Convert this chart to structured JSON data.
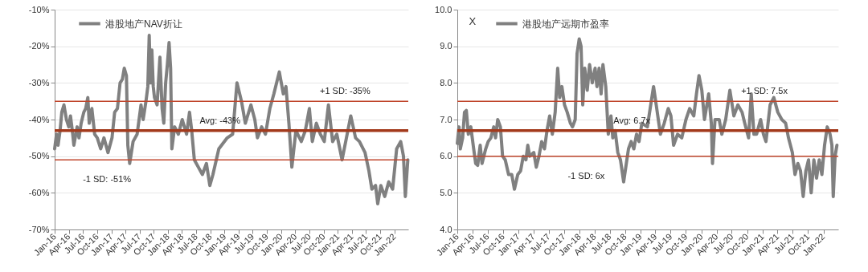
{
  "chart_data": [
    {
      "type": "line",
      "legend": "top left",
      "grid": "y",
      "xlim": [
        "2016-01-01",
        "2022-03-31"
      ],
      "xticks": [
        {
          "value": "2016-01-01",
          "label": "Jan-16"
        },
        {
          "value": "2016-04-01",
          "label": "Apr-16"
        },
        {
          "value": "2016-07-01",
          "label": "Jul-16"
        },
        {
          "value": "2016-10-01",
          "label": "Oct-16"
        },
        {
          "value": "2017-01-01",
          "label": "Jan-17"
        },
        {
          "value": "2017-04-01",
          "label": "Apr-17"
        },
        {
          "value": "2017-07-01",
          "label": "Jul-17"
        },
        {
          "value": "2017-10-01",
          "label": "Oct-17"
        },
        {
          "value": "2018-01-01",
          "label": "Jan-18"
        },
        {
          "value": "2018-04-01",
          "label": "Apr-18"
        },
        {
          "value": "2018-07-01",
          "label": "Jul-18"
        },
        {
          "value": "2018-10-01",
          "label": "Oct-18"
        },
        {
          "value": "2019-01-01",
          "label": "Jan-19"
        },
        {
          "value": "2019-04-01",
          "label": "Apr-19"
        },
        {
          "value": "2019-07-01",
          "label": "Jul-19"
        },
        {
          "value": "2019-10-01",
          "label": "Oct-19"
        },
        {
          "value": "2020-01-01",
          "label": "Jan-20"
        },
        {
          "value": "2020-04-01",
          "label": "Apr-20"
        },
        {
          "value": "2020-07-01",
          "label": "Jul-20"
        },
        {
          "value": "2020-10-01",
          "label": "Oct-20"
        },
        {
          "value": "2021-01-01",
          "label": "Jan-21"
        },
        {
          "value": "2021-04-01",
          "label": "Apr-21"
        },
        {
          "value": "2021-07-01",
          "label": "Jul-21"
        },
        {
          "value": "2021-10-01",
          "label": "Oct-21"
        },
        {
          "value": "2022-01-01",
          "label": "Jan-22"
        }
      ],
      "ylim": [
        -70,
        -10
      ],
      "yticks": [
        {
          "value": -70,
          "label": "-70%"
        },
        {
          "value": -60,
          "label": "-60%"
        },
        {
          "value": -50,
          "label": "-50%"
        },
        {
          "value": -40,
          "label": "-40%"
        },
        {
          "value": -30,
          "label": "-30%"
        },
        {
          "value": -20,
          "label": "-20%"
        },
        {
          "value": -10,
          "label": "-10%"
        }
      ],
      "ref_lines": [
        {
          "axis": "y",
          "value": -35,
          "label": "+1 SD: -35%",
          "color": "#c0462c"
        },
        {
          "axis": "y",
          "value": -43,
          "label": "Avg: -43%",
          "color": "#a33a1c"
        },
        {
          "axis": "y",
          "value": -51,
          "label": "-1 SD: -51%",
          "color": "#c0462c"
        }
      ],
      "series": [
        {
          "name": "港股地产NAV折让",
          "color": "#808080",
          "x": [
            "2016-01-01",
            "2016-01-13",
            "2016-01-23",
            "2016-02-05",
            "2016-02-16",
            "2016-03-01",
            "2016-03-17",
            "2016-04-01",
            "2016-04-12",
            "2016-04-24",
            "2016-05-04",
            "2016-05-25",
            "2016-06-06",
            "2016-06-20",
            "2016-07-07",
            "2016-07-19",
            "2016-08-02",
            "2016-08-11",
            "2016-08-28",
            "2016-09-15",
            "2016-10-02",
            "2016-10-24",
            "2016-11-14",
            "2016-12-10",
            "2017-01-05",
            "2017-01-22",
            "2017-02-09",
            "2017-02-26",
            "2017-03-13",
            "2017-03-25",
            "2017-04-08",
            "2017-04-17",
            "2017-04-29",
            "2017-05-21",
            "2017-06-16",
            "2017-07-11",
            "2017-07-25",
            "2017-08-12",
            "2017-08-24",
            "2017-09-02",
            "2017-09-10",
            "2017-09-19",
            "2017-09-28",
            "2017-10-06",
            "2017-10-23",
            "2017-11-10",
            "2017-11-24",
            "2017-12-05",
            "2017-12-17",
            "2017-12-28",
            "2018-01-08",
            "2018-01-18",
            "2018-01-26",
            "2018-02-13",
            "2018-03-09",
            "2018-04-03",
            "2018-05-01",
            "2018-05-20",
            "2018-06-03",
            "2018-06-20",
            "2018-07-16",
            "2018-08-11",
            "2018-09-06",
            "2018-09-28",
            "2018-10-18",
            "2018-11-25",
            "2019-01-18",
            "2019-02-22",
            "2019-03-22",
            "2019-04-20",
            "2019-05-15",
            "2019-06-20",
            "2019-07-15",
            "2019-08-01",
            "2019-08-28",
            "2019-09-22",
            "2019-10-20",
            "2019-11-15",
            "2019-12-20",
            "2020-01-15",
            "2020-02-01",
            "2020-02-20",
            "2020-03-10",
            "2020-04-05",
            "2020-05-10",
            "2020-06-05",
            "2020-07-01",
            "2020-07-20",
            "2020-08-15",
            "2020-09-10",
            "2020-10-05",
            "2020-11-01",
            "2020-11-28",
            "2020-12-25",
            "2021-01-28",
            "2021-02-25",
            "2021-03-25",
            "2021-04-25",
            "2021-05-20",
            "2021-06-25",
            "2021-07-20",
            "2021-08-08",
            "2021-09-01",
            "2021-09-15",
            "2021-10-05",
            "2021-10-30",
            "2021-11-25",
            "2021-12-20",
            "2022-01-15",
            "2022-02-10",
            "2022-02-28",
            "2022-03-12",
            "2022-03-28"
          ],
          "values": [
            -48,
            -44,
            -47,
            -43,
            -38,
            -36,
            -40,
            -42,
            -39,
            -43,
            -47,
            -42,
            -45,
            -41,
            -38,
            -37,
            -34,
            -41,
            -37,
            -44,
            -45,
            -48,
            -45,
            -49,
            -45,
            -38,
            -37,
            -30,
            -29,
            -26,
            -28,
            -47,
            -52,
            -46,
            -44,
            -36,
            -40,
            -35,
            -31,
            -17,
            -30,
            -21,
            -31,
            -34,
            -36,
            -23,
            -37,
            -41,
            -30,
            -25,
            -19,
            -26,
            -48,
            -42,
            -44,
            -40,
            -44,
            -38,
            -43,
            -51,
            -53,
            -55,
            -52,
            -58,
            -55,
            -48,
            -45,
            -44,
            -30,
            -35,
            -41,
            -36,
            -40,
            -45,
            -42,
            -44,
            -37,
            -33,
            -27,
            -33,
            -31,
            -41,
            -53,
            -43,
            -46,
            -43,
            -37,
            -46,
            -41,
            -44,
            -46,
            -36,
            -46,
            -44,
            -51,
            -45,
            -39,
            -45,
            -46,
            -49,
            -54,
            -59,
            -58,
            -63,
            -58,
            -61,
            -57,
            -59,
            -48,
            -46,
            -50,
            -61,
            -51
          ]
        }
      ]
    },
    {
      "type": "line",
      "legend": "top left",
      "grid": "y",
      "ylabel": "X",
      "xlim": [
        "2016-01-01",
        "2022-03-31"
      ],
      "xticks": [
        {
          "value": "2016-01-01",
          "label": "Jan-16"
        },
        {
          "value": "2016-04-01",
          "label": "Apr-16"
        },
        {
          "value": "2016-07-01",
          "label": "Jul-16"
        },
        {
          "value": "2016-10-01",
          "label": "Oct-16"
        },
        {
          "value": "2017-01-01",
          "label": "Jan-17"
        },
        {
          "value": "2017-04-01",
          "label": "Apr-17"
        },
        {
          "value": "2017-07-01",
          "label": "Jul-17"
        },
        {
          "value": "2017-10-01",
          "label": "Oct-17"
        },
        {
          "value": "2018-01-01",
          "label": "Jan-18"
        },
        {
          "value": "2018-04-01",
          "label": "Apr-18"
        },
        {
          "value": "2018-07-01",
          "label": "Jul-18"
        },
        {
          "value": "2018-10-01",
          "label": "Oct-18"
        },
        {
          "value": "2019-01-01",
          "label": "Jan-19"
        },
        {
          "value": "2019-04-01",
          "label": "Apr-19"
        },
        {
          "value": "2019-07-01",
          "label": "Jul-19"
        },
        {
          "value": "2019-10-01",
          "label": "Oct-19"
        },
        {
          "value": "2020-01-01",
          "label": "Jan-20"
        },
        {
          "value": "2020-04-01",
          "label": "Apr-20"
        },
        {
          "value": "2020-07-01",
          "label": "Jul-20"
        },
        {
          "value": "2020-10-01",
          "label": "Oct-20"
        },
        {
          "value": "2021-01-01",
          "label": "Jan-21"
        },
        {
          "value": "2021-04-01",
          "label": "Apr-21"
        },
        {
          "value": "2021-07-01",
          "label": "Jul-21"
        },
        {
          "value": "2021-10-01",
          "label": "Oct-21"
        },
        {
          "value": "2022-01-01",
          "label": "Jan-22"
        }
      ],
      "ylim": [
        4,
        10
      ],
      "yticks": [
        {
          "value": 4,
          "label": "4.0"
        },
        {
          "value": 5,
          "label": "5.0"
        },
        {
          "value": 6,
          "label": "6.0"
        },
        {
          "value": 7,
          "label": "7.0"
        },
        {
          "value": 8,
          "label": "8.0"
        },
        {
          "value": 9,
          "label": "9.0"
        },
        {
          "value": 10,
          "label": "10.0"
        }
      ],
      "ref_lines": [
        {
          "axis": "y",
          "value": 7.5,
          "label": "+1 SD: 7.5x",
          "color": "#c0462c"
        },
        {
          "axis": "y",
          "value": 6.7,
          "label": "Avg: 6.7x",
          "color": "#a33a1c"
        },
        {
          "axis": "y",
          "value": 6,
          "label": "-1 SD: 6x",
          "color": "#c0462c"
        }
      ],
      "series": [
        {
          "name": "港股地产远期市盈率",
          "color": "#808080",
          "x": [
            "2016-01-01",
            "2016-01-11",
            "2016-01-19",
            "2016-02-02",
            "2016-02-13",
            "2016-02-24",
            "2016-03-07",
            "2016-03-22",
            "2016-04-08",
            "2016-04-20",
            "2016-05-02",
            "2016-05-17",
            "2016-05-28",
            "2016-06-19",
            "2016-07-04",
            "2016-07-20",
            "2016-08-06",
            "2016-08-17",
            "2016-08-30",
            "2016-09-15",
            "2016-09-28",
            "2016-10-14",
            "2016-11-03",
            "2016-11-22",
            "2016-12-08",
            "2016-12-28",
            "2017-01-14",
            "2017-01-30",
            "2017-02-15",
            "2017-02-26",
            "2017-03-09",
            "2017-04-03",
            "2017-04-18",
            "2017-05-04",
            "2017-05-20",
            "2017-06-06",
            "2017-06-21",
            "2017-07-07",
            "2017-07-23",
            "2017-08-09",
            "2017-08-24",
            "2017-09-05",
            "2017-09-18",
            "2017-10-04",
            "2017-10-20",
            "2017-11-08",
            "2017-11-21",
            "2017-12-07",
            "2017-12-18",
            "2017-12-31",
            "2018-01-11",
            "2018-01-21",
            "2018-02-02",
            "2018-02-17",
            "2018-03-03",
            "2018-03-19",
            "2018-04-05",
            "2018-04-16",
            "2018-04-29",
            "2018-05-11",
            "2018-05-22",
            "2018-06-08",
            "2018-06-23",
            "2018-07-09",
            "2018-07-20",
            "2018-08-03",
            "2018-08-19",
            "2018-09-04",
            "2018-09-23",
            "2018-10-09",
            "2018-10-22",
            "2018-11-07",
            "2018-11-23",
            "2018-12-09",
            "2018-12-24",
            "2019-01-10",
            "2019-02-12",
            "2019-03-21",
            "2019-04-06",
            "2019-05-01",
            "2019-05-24",
            "2019-06-17",
            "2019-07-03",
            "2019-07-19",
            "2019-08-12",
            "2019-09-06",
            "2019-10-01",
            "2019-10-23",
            "2019-11-17",
            "2019-12-03",
            "2019-12-18",
            "2020-01-04",
            "2020-01-20",
            "2020-02-14",
            "2020-03-01",
            "2020-03-08",
            "2020-03-23",
            "2020-04-17",
            "2020-05-03",
            "2020-05-26",
            "2020-06-20",
            "2020-07-14",
            "2020-08-07",
            "2020-09-01",
            "2020-09-17",
            "2020-10-10",
            "2020-10-26",
            "2020-11-11",
            "2020-11-27",
            "2020-12-21",
            "2021-01-07",
            "2021-01-22",
            "2021-02-16",
            "2021-03-10",
            "2021-04-03",
            "2021-04-27",
            "2021-05-20",
            "2021-06-06",
            "2021-06-29",
            "2021-07-15",
            "2021-08-01",
            "2021-08-17",
            "2021-09-02",
            "2021-09-18",
            "2021-10-04",
            "2021-10-20",
            "2021-11-05",
            "2021-11-21",
            "2021-12-07",
            "2021-12-23",
            "2022-01-08",
            "2022-01-24",
            "2022-02-10",
            "2022-02-21",
            "2022-03-01",
            "2022-03-12",
            "2022-03-23"
          ],
          "values": [
            6.35,
            6.8,
            6.2,
            6.5,
            7.2,
            7.25,
            6.6,
            6.8,
            6.2,
            5.8,
            5.75,
            6.3,
            5.8,
            6.2,
            6.4,
            6.5,
            6.8,
            6.5,
            7.0,
            6.8,
            6.0,
            5.9,
            5.5,
            5.5,
            5.1,
            5.5,
            5.6,
            6.0,
            5.9,
            6.3,
            6.0,
            6.1,
            5.7,
            6.0,
            6.4,
            6.2,
            6.7,
            7.1,
            6.6,
            7.2,
            8.4,
            7.6,
            7.9,
            7.4,
            7.2,
            6.9,
            6.8,
            7.0,
            8.8,
            9.2,
            9.0,
            7.4,
            8.4,
            7.8,
            8.5,
            8.0,
            8.4,
            7.9,
            8.4,
            7.7,
            8.5,
            7.9,
            6.6,
            7.1,
            6.5,
            6.7,
            6.1,
            5.9,
            5.3,
            5.8,
            6.2,
            6.4,
            6.2,
            6.6,
            6.4,
            6.9,
            6.8,
            7.9,
            7.4,
            6.6,
            6.9,
            7.3,
            7.1,
            6.3,
            6.6,
            6.5,
            7.0,
            7.3,
            7.1,
            7.7,
            8.2,
            7.8,
            7.0,
            7.7,
            6.9,
            5.8,
            7.0,
            7.0,
            6.6,
            7.0,
            7.8,
            7.1,
            7.4,
            7.2,
            6.9,
            6.5,
            7.7,
            6.6,
            6.6,
            7.0,
            6.6,
            6.4,
            7.4,
            7.6,
            7.2,
            7.0,
            6.9,
            6.5,
            6.1,
            5.5,
            5.8,
            5.6,
            4.9,
            5.6,
            5.9,
            5.0,
            5.9,
            5.4,
            5.9,
            5.5,
            6.3,
            6.8,
            6.6,
            6.3,
            4.9,
            6.0,
            6.3
          ]
        }
      ]
    }
  ]
}
